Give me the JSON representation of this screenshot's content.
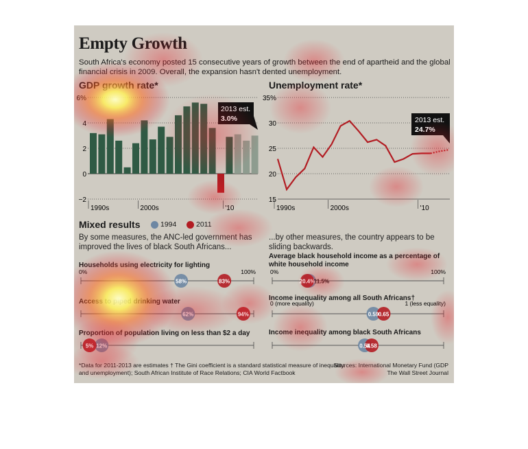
{
  "title": "Empty Growth",
  "subtitle": "South Africa's economy posted 15 consecutive years of growth between the end of apartheid and the global financial crisis in 2009. Overall, the expansion hasn't dented unemployment.",
  "chart_data": [
    {
      "type": "bar",
      "title": "GDP growth rate*",
      "x": [
        1994,
        1995,
        1996,
        1997,
        1998,
        1999,
        2000,
        2001,
        2002,
        2003,
        2004,
        2005,
        2006,
        2007,
        2008,
        2009,
        2010,
        2011,
        2012,
        2013
      ],
      "values": [
        3.2,
        3.1,
        4.3,
        2.6,
        0.5,
        2.4,
        4.2,
        2.7,
        3.7,
        2.9,
        4.6,
        5.3,
        5.6,
        5.5,
        3.6,
        -1.5,
        2.9,
        3.1,
        2.6,
        3.0
      ],
      "ylim": [
        -2,
        6
      ],
      "yticks": [
        "6%",
        "4",
        "2",
        "0",
        "−2"
      ],
      "xticks": [
        "1990s",
        "2000s",
        "'10"
      ],
      "annotation": {
        "line1": "2013 est.",
        "line2": "3.0%"
      },
      "colors": {
        "positive": "#2f5a44",
        "negative": "#b21d23",
        "estimate": "#8e9c8f"
      },
      "grid": true
    },
    {
      "type": "line",
      "title": "Unemployment rate*",
      "x": [
        1994,
        1995,
        1996,
        1997,
        1998,
        1999,
        2000,
        2001,
        2002,
        2003,
        2004,
        2005,
        2006,
        2007,
        2008,
        2009,
        2010,
        2011,
        2012,
        2013
      ],
      "values": [
        22.9,
        16.9,
        19.3,
        21.0,
        25.2,
        23.3,
        25.8,
        29.4,
        30.4,
        28.4,
        26.2,
        26.7,
        25.5,
        22.3,
        22.9,
        23.9,
        24.0,
        24.0,
        24.4,
        24.7
      ],
      "ylim": [
        15,
        35
      ],
      "yticks": [
        "35%",
        "30",
        "25",
        "20",
        "15"
      ],
      "xticks": [
        "1990s",
        "2000s",
        "'10"
      ],
      "annotation": {
        "line1": "2013 est.",
        "line2": "24.7%"
      },
      "colors": {
        "line": "#b21d23"
      },
      "grid": true
    }
  ],
  "mixed": {
    "title": "Mixed results",
    "legend": [
      {
        "label": "1994",
        "color": "#6d87a3"
      },
      {
        "label": "2011",
        "color": "#b21d23"
      }
    ],
    "left_intro": "By some measures, the ANC-led government has improved the lives of black South Africans...",
    "right_intro": "...by other measures, the country appears to be sliding backwards.",
    "indicators": [
      {
        "label": "Households using electricity for lighting",
        "scale": [
          "0%",
          "100%"
        ],
        "v1994": 58,
        "v2011": 83,
        "t1994": "58%",
        "t2011": "83%"
      },
      {
        "label": "Access to piped drinking water",
        "scale": [],
        "v1994": 62,
        "v2011": 94,
        "t1994": "62%",
        "t2011": "94%"
      },
      {
        "label": "Proportion of population living on less than $2 a day",
        "scale": [],
        "v1994": 12,
        "v2011": 5,
        "t1994": "12%",
        "t2011": "5%"
      },
      {
        "label": "Average black household income as a percentage of white household income",
        "scale": [
          "0%",
          "100%"
        ],
        "v1994": 21.5,
        "v2011": 20.4,
        "t1994": "21.5%",
        "t2011": "20.4%"
      },
      {
        "label": "Income inequality among all South Africans†",
        "scale": [
          "0 (more equality)",
          "1 (less equality)"
        ],
        "v1994": 0.59,
        "v2011": 0.65,
        "t1994": "0.59",
        "t2011": "0.65"
      },
      {
        "label": "Income inequality among black South Africans",
        "scale": [],
        "v1994": 0.54,
        "v2011": 0.58,
        "t1994": "0.54",
        "t2011": "0.58"
      }
    ]
  },
  "footnote": {
    "line1": "*Data for 2011-2013 are estimates   † The Gini coefficient is a standard statistical measure of inequality.",
    "line2": "and unemployment); South African Institute of Race Relations; CIA World Factbook",
    "sources1": "Sources: International Monetary Fund (GDP",
    "sources2": "The Wall Street Journal"
  }
}
